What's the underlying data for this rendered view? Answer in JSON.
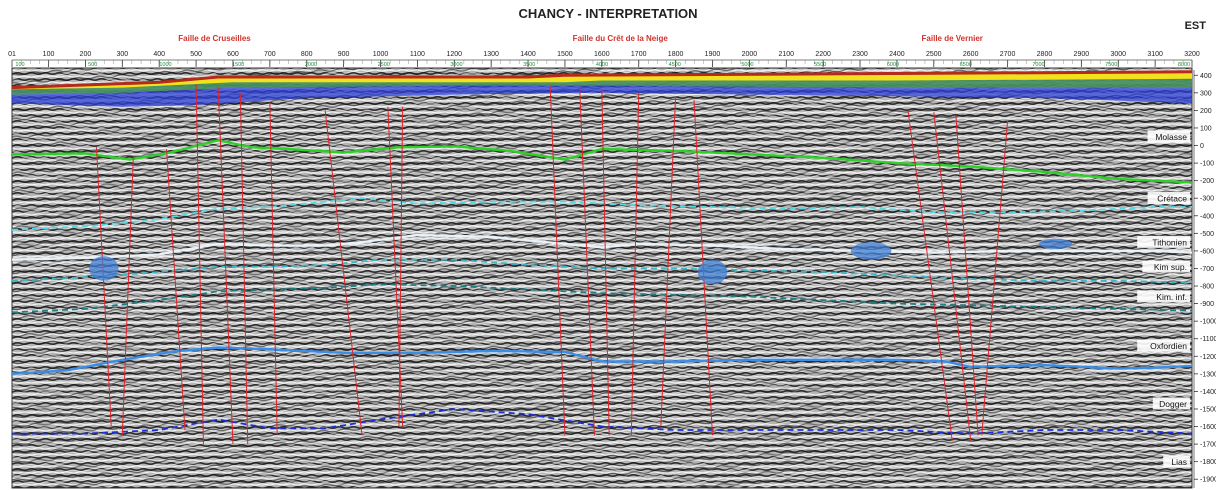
{
  "title": "CHANCY - INTERPRETATION",
  "direction_label": "EST",
  "faults": [
    {
      "name": "Faille de Cruseilles",
      "cdp": 550
    },
    {
      "name": "Faille du Crêt de la Neige",
      "cdp": 1650
    },
    {
      "name": "Faille de Vernier",
      "cdp": 2550
    }
  ],
  "cdp_axis": {
    "min": 1,
    "max": 3200,
    "tick_labels": [
      "01",
      "100",
      "200",
      "300",
      "400",
      "500",
      "600",
      "700",
      "800",
      "900",
      "1000",
      "1100",
      "1200",
      "1300",
      "1400",
      "1500",
      "1600",
      "1700",
      "1800",
      "1900",
      "2000",
      "2100",
      "2200",
      "2300",
      "2400",
      "2500",
      "2600",
      "2700",
      "2800",
      "2900",
      "3000",
      "3100",
      "3200"
    ]
  },
  "sub_axis": {
    "labels": [
      "100",
      "500",
      "1000",
      "1500",
      "2000",
      "2500",
      "3000",
      "3500",
      "4000",
      "4500",
      "5000",
      "5500",
      "6000",
      "6500",
      "7000",
      "7500",
      "8000"
    ],
    "color": "#1d8f3a"
  },
  "depth_axis": {
    "min": -1950,
    "max": 430,
    "tick_labels": [
      "400",
      "300",
      "200",
      "100",
      "0",
      "-100",
      "-200",
      "-300",
      "-400",
      "-500",
      "-600",
      "-700",
      "-800",
      "-900",
      "-1000",
      "-1100",
      "-1200",
      "-1300",
      "-1400",
      "-1500",
      "-1600",
      "-1700",
      "-1800",
      "-1900"
    ]
  },
  "horizons": [
    {
      "name": "Molasse",
      "color": "#2fcf2a",
      "style": "solid",
      "label_depth": 40,
      "points": [
        [
          1,
          -50
        ],
        [
          200,
          -45
        ],
        [
          320,
          -80
        ],
        [
          430,
          -40
        ],
        [
          560,
          30
        ],
        [
          650,
          -10
        ],
        [
          750,
          -20
        ],
        [
          900,
          -40
        ],
        [
          1050,
          -10
        ],
        [
          1200,
          -5
        ],
        [
          1350,
          -30
        ],
        [
          1500,
          -80
        ],
        [
          1600,
          -20
        ],
        [
          1800,
          -30
        ],
        [
          2000,
          -50
        ],
        [
          2200,
          -70
        ],
        [
          2400,
          -100
        ],
        [
          2600,
          -120
        ],
        [
          2800,
          -150
        ],
        [
          3000,
          -190
        ],
        [
          3200,
          -210
        ]
      ]
    },
    {
      "name": "Crétace",
      "color": "#55d8e6",
      "style": "dashed",
      "label_depth": -310,
      "points": [
        [
          1,
          -480
        ],
        [
          200,
          -460
        ],
        [
          400,
          -420
        ],
        [
          560,
          -360
        ],
        [
          700,
          -350
        ],
        [
          850,
          -320
        ],
        [
          950,
          -300
        ],
        [
          1100,
          -330
        ],
        [
          1300,
          -320
        ],
        [
          1500,
          -320
        ],
        [
          1700,
          -340
        ],
        [
          1900,
          -350
        ],
        [
          2100,
          -360
        ],
        [
          2300,
          -350
        ],
        [
          2500,
          -380
        ],
        [
          2700,
          -380
        ],
        [
          2900,
          -370
        ],
        [
          3100,
          -350
        ],
        [
          3200,
          -350
        ]
      ]
    },
    {
      "name": "Tithonien",
      "color": "#e8f2f8",
      "style": "solid",
      "label_depth": -560,
      "points": [
        [
          1,
          -650
        ],
        [
          200,
          -640
        ],
        [
          400,
          -620
        ],
        [
          560,
          -560
        ],
        [
          700,
          -570
        ],
        [
          850,
          -570
        ],
        [
          950,
          -550
        ],
        [
          1100,
          -510
        ],
        [
          1300,
          -520
        ],
        [
          1500,
          -560
        ],
        [
          1600,
          -580
        ],
        [
          1700,
          -560
        ],
        [
          1900,
          -570
        ],
        [
          2100,
          -590
        ],
        [
          2300,
          -600
        ],
        [
          2500,
          -610
        ],
        [
          2700,
          -600
        ],
        [
          2900,
          -600
        ],
        [
          3100,
          -600
        ],
        [
          3200,
          -610
        ]
      ]
    },
    {
      "name": "Kim sup.",
      "color": "#3ab6c8",
      "style": "dashed",
      "label_depth": -700,
      "points": [
        [
          1,
          -770
        ],
        [
          200,
          -750
        ],
        [
          400,
          -720
        ],
        [
          560,
          -690
        ],
        [
          700,
          -690
        ],
        [
          850,
          -680
        ],
        [
          1000,
          -650
        ],
        [
          1200,
          -650
        ],
        [
          1400,
          -680
        ],
        [
          1600,
          -700
        ],
        [
          1800,
          -700
        ],
        [
          2000,
          -710
        ],
        [
          2200,
          -720
        ],
        [
          2400,
          -740
        ],
        [
          2600,
          -760
        ],
        [
          2800,
          -770
        ],
        [
          3000,
          -770
        ],
        [
          3200,
          -780
        ]
      ]
    },
    {
      "name": "Kim. inf.",
      "color": "#1c7f85",
      "style": "dashed",
      "label_depth": -870,
      "points": [
        [
          1,
          -950
        ],
        [
          200,
          -930
        ],
        [
          400,
          -880
        ],
        [
          560,
          -830
        ],
        [
          700,
          -820
        ],
        [
          850,
          -810
        ],
        [
          1000,
          -790
        ],
        [
          1200,
          -800
        ],
        [
          1400,
          -820
        ],
        [
          1600,
          -840
        ],
        [
          1800,
          -850
        ],
        [
          2000,
          -860
        ],
        [
          2200,
          -880
        ],
        [
          2400,
          -900
        ],
        [
          2600,
          -910
        ],
        [
          2800,
          -920
        ],
        [
          3000,
          -930
        ],
        [
          3200,
          -940
        ]
      ]
    },
    {
      "name": "Oxfordien",
      "color": "#3a8ee8",
      "style": "solid",
      "label_depth": -1150,
      "points": [
        [
          1,
          -1300
        ],
        [
          150,
          -1280
        ],
        [
          300,
          -1220
        ],
        [
          450,
          -1170
        ],
        [
          560,
          -1150
        ],
        [
          700,
          -1160
        ],
        [
          900,
          -1180
        ],
        [
          1100,
          -1180
        ],
        [
          1300,
          -1170
        ],
        [
          1500,
          -1175
        ],
        [
          1600,
          -1230
        ],
        [
          1800,
          -1230
        ],
        [
          2000,
          -1220
        ],
        [
          2200,
          -1220
        ],
        [
          2400,
          -1220
        ],
        [
          2530,
          -1230
        ],
        [
          2600,
          -1260
        ],
        [
          2800,
          -1250
        ],
        [
          3000,
          -1270
        ],
        [
          3100,
          -1265
        ],
        [
          3200,
          -1255
        ]
      ]
    },
    {
      "name": "Dogger",
      "color": "#1b2fd8",
      "style": "dashed",
      "label_depth": -1480,
      "points": [
        [
          1,
          -1640
        ],
        [
          200,
          -1640
        ],
        [
          400,
          -1620
        ],
        [
          560,
          -1560
        ],
        [
          700,
          -1610
        ],
        [
          850,
          -1610
        ],
        [
          1000,
          -1560
        ],
        [
          1200,
          -1500
        ],
        [
          1400,
          -1530
        ],
        [
          1600,
          -1600
        ],
        [
          1800,
          -1620
        ],
        [
          2000,
          -1620
        ],
        [
          2200,
          -1620
        ],
        [
          2400,
          -1620
        ],
        [
          2600,
          -1640
        ],
        [
          2800,
          -1620
        ],
        [
          3000,
          -1620
        ],
        [
          3200,
          -1640
        ]
      ]
    },
    {
      "name": "Lias",
      "color": "#ffffff",
      "style": "none",
      "label_depth": -1810,
      "points": []
    }
  ],
  "fault_lines": [
    [
      [
        230,
        -10
      ],
      [
        270,
        -1600
      ]
    ],
    [
      [
        330,
        -60
      ],
      [
        300,
        -1650
      ]
    ],
    [
      [
        420,
        -20
      ],
      [
        470,
        -1620
      ]
    ],
    [
      [
        500,
        350
      ],
      [
        520,
        -1700
      ]
    ],
    [
      [
        560,
        330
      ],
      [
        600,
        -1700
      ]
    ],
    [
      [
        620,
        300
      ],
      [
        640,
        -1700
      ]
    ],
    [
      [
        700,
        250
      ],
      [
        720,
        -1650
      ]
    ],
    [
      [
        850,
        200
      ],
      [
        950,
        -1650
      ]
    ],
    [
      [
        1020,
        220
      ],
      [
        1060,
        -1600
      ]
    ],
    [
      [
        1060,
        220
      ],
      [
        1050,
        -1600
      ]
    ],
    [
      [
        1460,
        340
      ],
      [
        1500,
        -1650
      ]
    ],
    [
      [
        1540,
        330
      ],
      [
        1580,
        -1650
      ]
    ],
    [
      [
        1600,
        320
      ],
      [
        1620,
        -1650
      ]
    ],
    [
      [
        1700,
        300
      ],
      [
        1680,
        -1650
      ]
    ],
    [
      [
        1800,
        280
      ],
      [
        1760,
        -1600
      ]
    ],
    [
      [
        1850,
        260
      ],
      [
        1900,
        -1650
      ]
    ],
    [
      [
        2430,
        200
      ],
      [
        2550,
        -1680
      ]
    ],
    [
      [
        2500,
        190
      ],
      [
        2600,
        -1680
      ]
    ],
    [
      [
        2560,
        170
      ],
      [
        2620,
        -1650
      ]
    ],
    [
      [
        2700,
        140
      ],
      [
        2630,
        -1650
      ]
    ]
  ],
  "bodies": [
    {
      "cdp": 250,
      "depth": -700,
      "rx_cdp": 40,
      "ry_depth": 70
    },
    {
      "cdp": 1900,
      "depth": -720,
      "rx_cdp": 40,
      "ry_depth": 70
    },
    {
      "cdp": 2330,
      "depth": -600,
      "rx_cdp": 55,
      "ry_depth": 50
    },
    {
      "cdp": 2830,
      "depth": -560,
      "rx_cdp": 45,
      "ry_depth": 30
    }
  ],
  "colors": {
    "title": "#222222",
    "fault_label": "#d2332b",
    "fault_line": "#e0242a",
    "body": "#3f7fd6",
    "surface_red": "#b42a1c",
    "surface_yellow": "#f2e21d",
    "surface_green": "#4da641",
    "surface_blue": "#2b3fd8"
  }
}
